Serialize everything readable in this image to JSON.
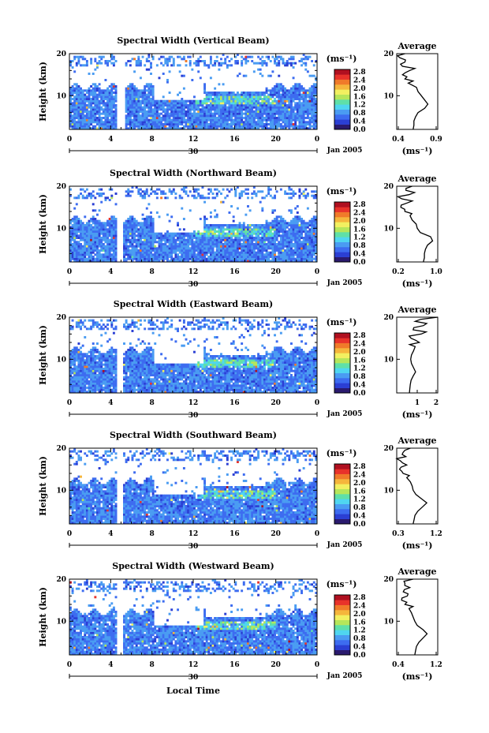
{
  "colors": {
    "scale": [
      "#2a1a6e",
      "#2b3fd4",
      "#3d6cf0",
      "#4a9cf2",
      "#4fd6f0",
      "#5fe0a8",
      "#b6e65a",
      "#f2f060",
      "#f5b63c",
      "#f07a2a",
      "#e8322a",
      "#b01020"
    ],
    "ink": "#000000",
    "background": "#ffffff"
  },
  "figure": {
    "xlabel": "Local Time",
    "date_label": "Jan 2005",
    "day_label": "30",
    "colorbar_unit": "(ms⁻¹)",
    "colorbar_ticks": [
      "2.8",
      "2.4",
      "2.0",
      "1.6",
      "1.2",
      "0.8",
      "0.4",
      "0.0"
    ],
    "ylabel": "Height (km)",
    "avg_title": "Average",
    "avg_xlabel": "(ms⁻¹)"
  },
  "chart_data": [
    {
      "type": "heatmap",
      "title": "Spectral Width (Vertical Beam)",
      "xlabel": "Local Time",
      "ylabel": "Height (km)",
      "xlim": [
        0,
        24
      ],
      "ylim": [
        2,
        20
      ],
      "xticks": [
        "0",
        "4",
        "8",
        "12",
        "16",
        "20",
        "0"
      ],
      "yticks": [
        "20",
        "10"
      ],
      "colorbar": {
        "label": "(ms⁻¹)",
        "range": [
          0,
          3.0
        ],
        "ticks": [
          "2.8",
          "2.4",
          "2.0",
          "1.6",
          "1.2",
          "0.8",
          "0.4",
          "0.0"
        ]
      },
      "gaps_hours": [
        [
          4.6,
          5.2
        ]
      ],
      "profile": {
        "title": "Average",
        "xlabel": "(ms⁻¹)",
        "xlim": [
          0.4,
          0.9
        ],
        "xticks": [
          "0.4",
          "0.9"
        ],
        "ylim": [
          2,
          20
        ],
        "yticks": [
          "20",
          "10"
        ],
        "height_km": [
          2,
          3,
          4,
          5,
          6,
          7,
          8,
          9,
          10,
          11,
          12,
          13,
          14,
          15,
          16,
          17,
          18,
          19,
          20
        ],
        "width_ms": [
          0.6,
          0.61,
          0.61,
          0.63,
          0.66,
          0.74,
          0.78,
          0.74,
          0.7,
          0.66,
          0.64,
          0.54,
          0.5,
          0.47,
          0.56,
          0.47,
          0.5,
          0.44,
          0.5
        ]
      }
    },
    {
      "type": "heatmap",
      "title": "Spectral Width (Northward Beam)",
      "xlabel": "Local Time",
      "ylabel": "Height (km)",
      "xlim": [
        0,
        24
      ],
      "ylim": [
        2,
        20
      ],
      "xticks": [
        "0",
        "4",
        "8",
        "12",
        "16",
        "20",
        "0"
      ],
      "yticks": [
        "20",
        "10"
      ],
      "colorbar": {
        "label": "(ms⁻¹)",
        "range": [
          0,
          3.0
        ],
        "ticks": [
          "2.8",
          "2.4",
          "2.0",
          "1.6",
          "1.2",
          "0.8",
          "0.4",
          "0.0"
        ]
      },
      "gaps_hours": [
        [
          4.4,
          5.1
        ]
      ],
      "profile": {
        "title": "Average",
        "xlabel": "(ms⁻¹)",
        "xlim": [
          0.2,
          1.0
        ],
        "xticks": [
          "0.2",
          "1.0"
        ],
        "ylim": [
          2,
          20
        ],
        "yticks": [
          "20",
          "10"
        ],
        "height_km": [
          2,
          3,
          4,
          5,
          6,
          7,
          8,
          9,
          10,
          11,
          12,
          13,
          14,
          15,
          16,
          17,
          18,
          19,
          20
        ],
        "width_ms": [
          0.72,
          0.74,
          0.74,
          0.76,
          0.8,
          0.9,
          0.86,
          0.66,
          0.6,
          0.58,
          0.5,
          0.46,
          0.36,
          0.28,
          0.4,
          0.3,
          0.44,
          0.38,
          0.5
        ]
      }
    },
    {
      "type": "heatmap",
      "title": "Spectral Width (Eastward Beam)",
      "xlabel": "Local Time",
      "ylabel": "Height (km)",
      "xlim": [
        0,
        24
      ],
      "ylim": [
        2,
        20
      ],
      "xticks": [
        "0",
        "4",
        "8",
        "12",
        "16",
        "20",
        "0"
      ],
      "yticks": [
        "20",
        "10"
      ],
      "colorbar": {
        "label": "(ms⁻¹)",
        "range": [
          0,
          3.0
        ],
        "ticks": [
          "2.8",
          "2.4",
          "2.0",
          "1.6",
          "1.2",
          "0.8",
          "0.4",
          "0.0"
        ]
      },
      "gaps_hours": [
        [
          4.4,
          5.1
        ]
      ],
      "profile": {
        "title": "Average",
        "xlabel": "(ms⁻¹)",
        "xlim": [
          0,
          2
        ],
        "xticks": [
          "1",
          "2"
        ],
        "ylim": [
          2,
          20
        ],
        "yticks": [
          "20",
          "10"
        ],
        "height_km": [
          2,
          3,
          4,
          5,
          6,
          7,
          8,
          9,
          10,
          11,
          12,
          13,
          14,
          15,
          16,
          17,
          18,
          19,
          20
        ],
        "width_ms": [
          0.62,
          0.64,
          0.66,
          0.7,
          0.8,
          0.92,
          0.82,
          0.72,
          0.68,
          0.72,
          0.82,
          0.9,
          1.1,
          0.7,
          1.2,
          0.8,
          1.3,
          0.9,
          2.0
        ]
      }
    },
    {
      "type": "heatmap",
      "title": "Spectral Width (Southward Beam)",
      "xlabel": "Local Time",
      "ylabel": "Height (km)",
      "xlim": [
        0,
        24
      ],
      "ylim": [
        2,
        20
      ],
      "xticks": [
        "0",
        "4",
        "8",
        "12",
        "16",
        "20",
        "0"
      ],
      "yticks": [
        "20",
        "10"
      ],
      "colorbar": {
        "label": "(ms⁻¹)",
        "range": [
          0,
          3.0
        ],
        "ticks": [
          "2.8",
          "2.4",
          "2.0",
          "1.6",
          "1.2",
          "0.8",
          "0.4",
          "0.0"
        ]
      },
      "gaps_hours": [
        [
          4.4,
          5.1
        ]
      ],
      "profile": {
        "title": "Average",
        "xlabel": "(ms⁻¹)",
        "xlim": [
          0.3,
          1.2
        ],
        "xticks": [
          "0.3",
          "1.2"
        ],
        "ylim": [
          2,
          20
        ],
        "yticks": [
          "20",
          "10"
        ],
        "height_km": [
          2,
          3,
          4,
          5,
          6,
          7,
          8,
          9,
          10,
          11,
          12,
          13,
          14,
          15,
          16,
          17,
          18,
          19,
          20
        ],
        "width_ms": [
          0.66,
          0.68,
          0.7,
          0.76,
          0.86,
          0.96,
          0.84,
          0.72,
          0.66,
          0.64,
          0.6,
          0.52,
          0.44,
          0.36,
          0.52,
          0.38,
          0.5,
          0.44,
          0.6
        ]
      }
    },
    {
      "type": "heatmap",
      "title": "Spectral Width (Westward Beam)",
      "xlabel": "Local Time",
      "ylabel": "Height (km)",
      "xlim": [
        0,
        24
      ],
      "ylim": [
        2,
        20
      ],
      "xticks": [
        "0",
        "4",
        "8",
        "12",
        "16",
        "20",
        "0"
      ],
      "yticks": [
        "20",
        "10"
      ],
      "colorbar": {
        "label": "(ms⁻¹)",
        "range": [
          0,
          3.0
        ],
        "ticks": [
          "2.8",
          "2.4",
          "2.0",
          "1.6",
          "1.2",
          "0.8",
          "0.4",
          "0.0"
        ]
      },
      "gaps_hours": [
        [
          4.4,
          5.1
        ]
      ],
      "profile": {
        "title": "Average",
        "xlabel": "(ms⁻¹)",
        "xlim": [
          0.2,
          1.2
        ],
        "xticks": [
          "0.4",
          "1.2"
        ],
        "ylim": [
          2,
          20
        ],
        "yticks": [
          "20",
          "10"
        ],
        "height_km": [
          2,
          3,
          4,
          5,
          6,
          7,
          8,
          9,
          10,
          11,
          12,
          13,
          14,
          15,
          16,
          17,
          18,
          19,
          20
        ],
        "width_ms": [
          0.64,
          0.66,
          0.68,
          0.74,
          0.84,
          0.94,
          0.84,
          0.7,
          0.64,
          0.6,
          0.56,
          0.5,
          0.4,
          0.32,
          0.46,
          0.36,
          0.52,
          0.4,
          0.6
        ]
      }
    }
  ]
}
